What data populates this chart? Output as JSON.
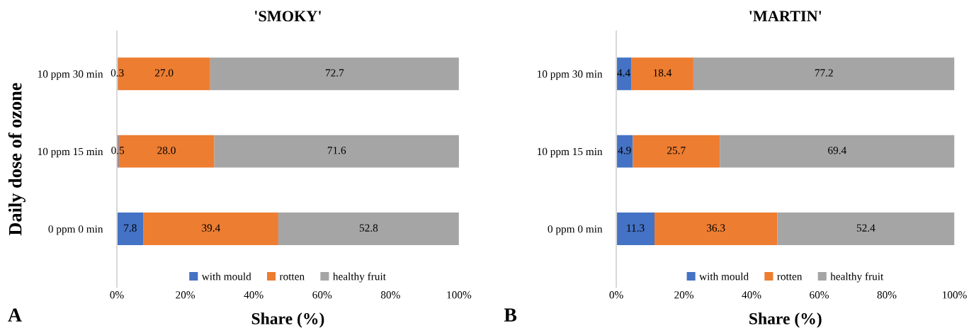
{
  "chart_data": [
    {
      "type": "bar",
      "orientation": "horizontal",
      "stacked": true,
      "title": "'SMOKY'",
      "xlabel": "Share (%)",
      "ylabel": "Daily dose of ozone",
      "categories": [
        "10 ppm 30 min",
        "10 ppm 15 min",
        "0 ppm 0 min"
      ],
      "series": [
        {
          "name": "with mould",
          "color": "#4472c4",
          "values": [
            0.3,
            0.5,
            7.8
          ],
          "value_labels": [
            "0.3",
            "0.5",
            "7.8"
          ]
        },
        {
          "name": "rotten",
          "color": "#ed7d31",
          "values": [
            27.0,
            28.0,
            39.4
          ],
          "value_labels": [
            "27.0",
            "28.0",
            "39.4"
          ]
        },
        {
          "name": "healthy fruit",
          "color": "#a5a5a5",
          "values": [
            72.7,
            71.6,
            52.8
          ],
          "value_labels": [
            "72.7",
            "71.6",
            "52.8"
          ]
        }
      ],
      "xlim": [
        0,
        100
      ],
      "xticks": [
        {
          "value": 0,
          "label": "0%"
        },
        {
          "value": 20,
          "label": "20%"
        },
        {
          "value": 40,
          "label": "40%"
        },
        {
          "value": 60,
          "label": "60%"
        },
        {
          "value": 80,
          "label": "80%"
        },
        {
          "value": 100,
          "label": "100%"
        }
      ],
      "legend": "bottom",
      "grid": false,
      "annotations": [
        "A"
      ]
    },
    {
      "type": "bar",
      "orientation": "horizontal",
      "stacked": true,
      "title": "'MARTIN'",
      "xlabel": "Share (%)",
      "categories": [
        "10 ppm 30 min",
        "10 ppm 15 min",
        "0 ppm 0 min"
      ],
      "series": [
        {
          "name": "with mould",
          "color": "#4472c4",
          "values": [
            4.4,
            4.9,
            11.3
          ],
          "value_labels": [
            "4.4",
            "4.9",
            "11.3"
          ]
        },
        {
          "name": "rotten",
          "color": "#ed7d31",
          "values": [
            18.4,
            25.7,
            36.3
          ],
          "value_labels": [
            "18.4",
            "25.7",
            "36.3"
          ]
        },
        {
          "name": "healthy fruit",
          "color": "#a5a5a5",
          "values": [
            77.2,
            69.4,
            52.4
          ],
          "value_labels": [
            "77.2",
            "69.4",
            "52.4"
          ]
        }
      ],
      "xlim": [
        0,
        100
      ],
      "xticks": [
        {
          "value": 0,
          "label": "0%"
        },
        {
          "value": 20,
          "label": "20%"
        },
        {
          "value": 40,
          "label": "40%"
        },
        {
          "value": 60,
          "label": "60%"
        },
        {
          "value": 80,
          "label": "80%"
        },
        {
          "value": 100,
          "label": "100%"
        }
      ],
      "legend": "bottom",
      "grid": false,
      "annotations": [
        "B"
      ]
    }
  ]
}
